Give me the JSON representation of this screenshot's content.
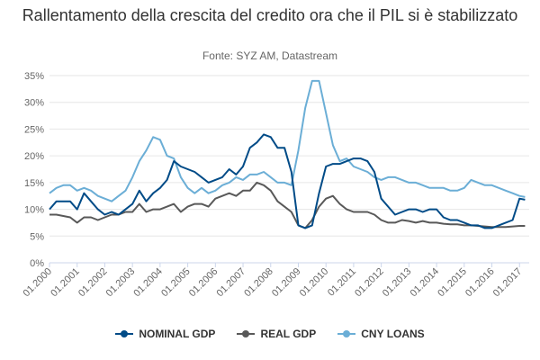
{
  "chart_data": {
    "type": "line",
    "title": "Rallentamento della crescita del credito ora che il PIL si è stabilizzato",
    "subtitle": "Fonte: SYZ AM, Datastream",
    "x_tick_labels": [
      "01.2000",
      "01.2001",
      "01.2002",
      "01.2003",
      "01.2004",
      "01.2005",
      "01.2006",
      "01.2007",
      "01.2008",
      "01.2009",
      "01.2010",
      "01.2011",
      "01.2012",
      "01.2013",
      "01.2014",
      "01.2015",
      "01.2016",
      "01.2017"
    ],
    "x_range": [
      2000.0,
      2017.35
    ],
    "y_tick_labels": [
      "0%",
      "5%",
      "10%",
      "15%",
      "20%",
      "25%",
      "30%",
      "35%"
    ],
    "y_range": [
      0,
      35
    ],
    "grid": true,
    "legend_position": "bottom",
    "series": [
      {
        "name": "NOMINAL GDP",
        "color": "#004b87",
        "points": [
          [
            2000.0,
            10
          ],
          [
            2000.25,
            11.5
          ],
          [
            2000.75,
            11.5
          ],
          [
            2001.0,
            10
          ],
          [
            2001.25,
            13
          ],
          [
            2001.5,
            11.5
          ],
          [
            2001.75,
            10
          ],
          [
            2002.0,
            9
          ],
          [
            2002.25,
            9.5
          ],
          [
            2002.5,
            9
          ],
          [
            2002.75,
            10
          ],
          [
            2003.0,
            11
          ],
          [
            2003.25,
            13.5
          ],
          [
            2003.5,
            11.5
          ],
          [
            2003.75,
            13
          ],
          [
            2004.0,
            14
          ],
          [
            2004.25,
            15.5
          ],
          [
            2004.5,
            19
          ],
          [
            2004.75,
            18
          ],
          [
            2005.0,
            17.5
          ],
          [
            2005.25,
            17
          ],
          [
            2005.5,
            16
          ],
          [
            2005.75,
            15
          ],
          [
            2006.0,
            15.5
          ],
          [
            2006.25,
            16
          ],
          [
            2006.5,
            17.5
          ],
          [
            2006.75,
            16.5
          ],
          [
            2007.0,
            18
          ],
          [
            2007.25,
            21.5
          ],
          [
            2007.5,
            22.5
          ],
          [
            2007.75,
            24
          ],
          [
            2008.0,
            23.5
          ],
          [
            2008.25,
            21.5
          ],
          [
            2008.5,
            21.5
          ],
          [
            2008.75,
            17
          ],
          [
            2009.0,
            7
          ],
          [
            2009.25,
            6.5
          ],
          [
            2009.5,
            7
          ],
          [
            2009.75,
            13
          ],
          [
            2010.0,
            18
          ],
          [
            2010.25,
            18.5
          ],
          [
            2010.5,
            18.5
          ],
          [
            2010.75,
            19
          ],
          [
            2011.0,
            19.5
          ],
          [
            2011.25,
            19.5
          ],
          [
            2011.5,
            19
          ],
          [
            2011.75,
            17
          ],
          [
            2012.0,
            12
          ],
          [
            2012.25,
            10.5
          ],
          [
            2012.5,
            9
          ],
          [
            2012.75,
            9.5
          ],
          [
            2013.0,
            10
          ],
          [
            2013.25,
            10
          ],
          [
            2013.5,
            9.5
          ],
          [
            2013.75,
            10
          ],
          [
            2014.0,
            10
          ],
          [
            2014.25,
            8.5
          ],
          [
            2014.5,
            8
          ],
          [
            2014.75,
            8
          ],
          [
            2015.0,
            7.5
          ],
          [
            2015.25,
            7
          ],
          [
            2015.5,
            7
          ],
          [
            2015.75,
            6.5
          ],
          [
            2016.0,
            6.5
          ],
          [
            2016.25,
            7
          ],
          [
            2016.5,
            7.5
          ],
          [
            2016.75,
            8
          ],
          [
            2017.0,
            12
          ],
          [
            2017.2,
            11.8
          ]
        ]
      },
      {
        "name": "REAL GDP",
        "color": "#595959",
        "points": [
          [
            2000.0,
            9
          ],
          [
            2000.25,
            9
          ],
          [
            2000.75,
            8.5
          ],
          [
            2001.0,
            7.5
          ],
          [
            2001.25,
            8.5
          ],
          [
            2001.5,
            8.5
          ],
          [
            2001.75,
            8
          ],
          [
            2002.0,
            8.5
          ],
          [
            2002.25,
            9
          ],
          [
            2002.5,
            9
          ],
          [
            2002.75,
            9.5
          ],
          [
            2003.0,
            9.5
          ],
          [
            2003.25,
            11
          ],
          [
            2003.5,
            9.5
          ],
          [
            2003.75,
            10
          ],
          [
            2004.0,
            10
          ],
          [
            2004.25,
            10.5
          ],
          [
            2004.5,
            11
          ],
          [
            2004.75,
            9.5
          ],
          [
            2005.0,
            10.5
          ],
          [
            2005.25,
            11
          ],
          [
            2005.5,
            11
          ],
          [
            2005.75,
            10.5
          ],
          [
            2006.0,
            12
          ],
          [
            2006.25,
            12.5
          ],
          [
            2006.5,
            13
          ],
          [
            2006.75,
            12.5
          ],
          [
            2007.0,
            13.5
          ],
          [
            2007.25,
            13.5
          ],
          [
            2007.5,
            15
          ],
          [
            2007.75,
            14.5
          ],
          [
            2008.0,
            13.5
          ],
          [
            2008.25,
            11.5
          ],
          [
            2008.5,
            10.5
          ],
          [
            2008.75,
            9.5
          ],
          [
            2009.0,
            7
          ],
          [
            2009.25,
            6.5
          ],
          [
            2009.5,
            8
          ],
          [
            2009.75,
            10.5
          ],
          [
            2010.0,
            12
          ],
          [
            2010.25,
            12.5
          ],
          [
            2010.5,
            11
          ],
          [
            2010.75,
            10
          ],
          [
            2011.0,
            9.5
          ],
          [
            2011.25,
            9.5
          ],
          [
            2011.5,
            9.5
          ],
          [
            2011.75,
            9
          ],
          [
            2012.0,
            8
          ],
          [
            2012.25,
            7.5
          ],
          [
            2012.5,
            7.5
          ],
          [
            2012.75,
            8
          ],
          [
            2013.0,
            7.8
          ],
          [
            2013.25,
            7.5
          ],
          [
            2013.5,
            7.8
          ],
          [
            2013.75,
            7.5
          ],
          [
            2014.0,
            7.5
          ],
          [
            2014.25,
            7.3
          ],
          [
            2014.5,
            7.2
          ],
          [
            2014.75,
            7.2
          ],
          [
            2015.0,
            7
          ],
          [
            2015.25,
            7
          ],
          [
            2015.5,
            6.9
          ],
          [
            2015.75,
            6.8
          ],
          [
            2016.0,
            6.7
          ],
          [
            2016.25,
            6.7
          ],
          [
            2016.5,
            6.7
          ],
          [
            2016.75,
            6.8
          ],
          [
            2017.0,
            6.9
          ],
          [
            2017.2,
            6.9
          ]
        ]
      },
      {
        "name": "CNY LOANS",
        "color": "#6baed6",
        "points": [
          [
            2000.0,
            13
          ],
          [
            2000.25,
            14
          ],
          [
            2000.5,
            14.5
          ],
          [
            2000.75,
            14.5
          ],
          [
            2001.0,
            13.5
          ],
          [
            2001.25,
            14
          ],
          [
            2001.5,
            13.5
          ],
          [
            2001.75,
            12.5
          ],
          [
            2002.0,
            12
          ],
          [
            2002.25,
            11.5
          ],
          [
            2002.5,
            12.5
          ],
          [
            2002.75,
            13.5
          ],
          [
            2003.0,
            16
          ],
          [
            2003.25,
            19
          ],
          [
            2003.5,
            21
          ],
          [
            2003.75,
            23.5
          ],
          [
            2004.0,
            23
          ],
          [
            2004.25,
            20
          ],
          [
            2004.5,
            19.5
          ],
          [
            2004.75,
            16
          ],
          [
            2005.0,
            14
          ],
          [
            2005.25,
            13
          ],
          [
            2005.5,
            14
          ],
          [
            2005.75,
            13
          ],
          [
            2006.0,
            13.5
          ],
          [
            2006.25,
            14.5
          ],
          [
            2006.5,
            15
          ],
          [
            2006.75,
            16
          ],
          [
            2007.0,
            15.5
          ],
          [
            2007.25,
            16.5
          ],
          [
            2007.5,
            16.5
          ],
          [
            2007.75,
            17
          ],
          [
            2008.0,
            16
          ],
          [
            2008.25,
            15
          ],
          [
            2008.5,
            15
          ],
          [
            2008.75,
            14.5
          ],
          [
            2009.0,
            21
          ],
          [
            2009.25,
            29
          ],
          [
            2009.5,
            34
          ],
          [
            2009.75,
            34
          ],
          [
            2010.0,
            28
          ],
          [
            2010.25,
            22
          ],
          [
            2010.5,
            19
          ],
          [
            2010.75,
            19.5
          ],
          [
            2011.0,
            18
          ],
          [
            2011.25,
            17.5
          ],
          [
            2011.5,
            17
          ],
          [
            2011.75,
            16
          ],
          [
            2012.0,
            15.5
          ],
          [
            2012.25,
            16
          ],
          [
            2012.5,
            16
          ],
          [
            2012.75,
            15.5
          ],
          [
            2013.0,
            15
          ],
          [
            2013.25,
            15
          ],
          [
            2013.5,
            14.5
          ],
          [
            2013.75,
            14
          ],
          [
            2014.0,
            14
          ],
          [
            2014.25,
            14
          ],
          [
            2014.5,
            13.5
          ],
          [
            2014.75,
            13.5
          ],
          [
            2015.0,
            14
          ],
          [
            2015.25,
            15.5
          ],
          [
            2015.5,
            15
          ],
          [
            2015.75,
            14.5
          ],
          [
            2016.0,
            14.5
          ],
          [
            2016.25,
            14
          ],
          [
            2016.5,
            13.5
          ],
          [
            2016.75,
            13
          ],
          [
            2017.0,
            12.5
          ],
          [
            2017.2,
            12.3
          ]
        ]
      }
    ]
  }
}
